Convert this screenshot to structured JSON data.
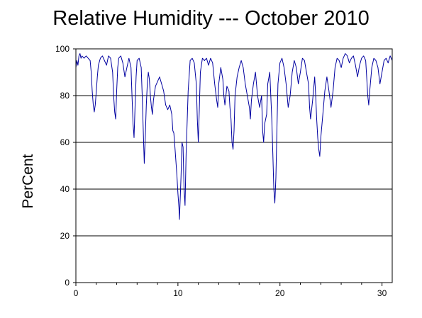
{
  "chart_data": {
    "type": "line",
    "title": "Relative Humidity --- October 2010",
    "xlabel": "",
    "ylabel": "PerCent",
    "xlim": [
      0,
      31
    ],
    "ylim": [
      0,
      100
    ],
    "x_ticks": [
      0,
      10,
      20,
      30
    ],
    "y_ticks": [
      0,
      20,
      40,
      60,
      80,
      100
    ],
    "grid": "horizontal",
    "colors": {
      "series": "#0000a0",
      "axis": "#000000",
      "grid": "#000000"
    },
    "series": [
      {
        "values": [
          [
            0.0,
            92
          ],
          [
            0.1,
            95
          ],
          [
            0.2,
            93
          ],
          [
            0.3,
            97
          ],
          [
            0.4,
            98
          ],
          [
            0.5,
            96
          ],
          [
            0.6,
            97
          ],
          [
            0.8,
            96
          ],
          [
            1.0,
            97
          ],
          [
            1.2,
            96
          ],
          [
            1.4,
            95
          ],
          [
            1.5,
            90
          ],
          [
            1.6,
            82
          ],
          [
            1.7,
            76
          ],
          [
            1.8,
            73
          ],
          [
            1.9,
            76
          ],
          [
            2.0,
            82
          ],
          [
            2.1,
            88
          ],
          [
            2.2,
            93
          ],
          [
            2.4,
            96
          ],
          [
            2.6,
            97
          ],
          [
            2.8,
            95
          ],
          [
            3.0,
            93
          ],
          [
            3.1,
            95
          ],
          [
            3.2,
            97
          ],
          [
            3.4,
            96
          ],
          [
            3.6,
            90
          ],
          [
            3.7,
            80
          ],
          [
            3.8,
            73
          ],
          [
            3.9,
            70
          ],
          [
            4.0,
            82
          ],
          [
            4.1,
            92
          ],
          [
            4.2,
            96
          ],
          [
            4.4,
            97
          ],
          [
            4.6,
            94
          ],
          [
            4.8,
            88
          ],
          [
            5.0,
            92
          ],
          [
            5.2,
            96
          ],
          [
            5.4,
            92
          ],
          [
            5.5,
            80
          ],
          [
            5.6,
            68
          ],
          [
            5.7,
            62
          ],
          [
            5.8,
            75
          ],
          [
            5.9,
            88
          ],
          [
            6.0,
            95
          ],
          [
            6.2,
            96
          ],
          [
            6.4,
            92
          ],
          [
            6.5,
            80
          ],
          [
            6.6,
            65
          ],
          [
            6.7,
            51
          ],
          [
            6.8,
            62
          ],
          [
            6.9,
            76
          ],
          [
            7.0,
            85
          ],
          [
            7.1,
            90
          ],
          [
            7.2,
            87
          ],
          [
            7.3,
            80
          ],
          [
            7.4,
            75
          ],
          [
            7.5,
            72
          ],
          [
            7.6,
            78
          ],
          [
            7.8,
            84
          ],
          [
            8.0,
            86
          ],
          [
            8.2,
            88
          ],
          [
            8.4,
            85
          ],
          [
            8.6,
            82
          ],
          [
            8.8,
            76
          ],
          [
            9.0,
            74
          ],
          [
            9.2,
            76
          ],
          [
            9.4,
            72
          ],
          [
            9.5,
            65
          ],
          [
            9.6,
            64
          ],
          [
            9.7,
            58
          ],
          [
            9.8,
            52
          ],
          [
            9.9,
            46
          ],
          [
            10.0,
            38
          ],
          [
            10.1,
            32
          ],
          [
            10.15,
            27
          ],
          [
            10.3,
            45
          ],
          [
            10.4,
            60
          ],
          [
            10.5,
            58
          ],
          [
            10.6,
            40
          ],
          [
            10.7,
            33
          ],
          [
            10.8,
            55
          ],
          [
            11.0,
            82
          ],
          [
            11.2,
            95
          ],
          [
            11.4,
            96
          ],
          [
            11.6,
            94
          ],
          [
            11.8,
            85
          ],
          [
            11.9,
            70
          ],
          [
            12.0,
            60
          ],
          [
            12.1,
            75
          ],
          [
            12.2,
            90
          ],
          [
            12.4,
            96
          ],
          [
            12.6,
            95
          ],
          [
            12.8,
            96
          ],
          [
            13.0,
            93
          ],
          [
            13.2,
            96
          ],
          [
            13.4,
            94
          ],
          [
            13.6,
            85
          ],
          [
            13.8,
            78
          ],
          [
            13.9,
            75
          ],
          [
            14.0,
            85
          ],
          [
            14.2,
            92
          ],
          [
            14.4,
            87
          ],
          [
            14.5,
            80
          ],
          [
            14.6,
            76
          ],
          [
            14.8,
            84
          ],
          [
            15.0,
            82
          ],
          [
            15.1,
            75
          ],
          [
            15.2,
            70
          ],
          [
            15.3,
            60
          ],
          [
            15.4,
            57
          ],
          [
            15.5,
            65
          ],
          [
            15.6,
            80
          ],
          [
            15.8,
            88
          ],
          [
            16.0,
            92
          ],
          [
            16.2,
            95
          ],
          [
            16.4,
            92
          ],
          [
            16.6,
            85
          ],
          [
            16.8,
            80
          ],
          [
            17.0,
            75
          ],
          [
            17.1,
            70
          ],
          [
            17.2,
            78
          ],
          [
            17.4,
            85
          ],
          [
            17.6,
            90
          ],
          [
            17.8,
            80
          ],
          [
            18.0,
            75
          ],
          [
            18.2,
            80
          ],
          [
            18.3,
            65
          ],
          [
            18.4,
            60
          ],
          [
            18.5,
            68
          ],
          [
            18.6,
            70
          ],
          [
            18.7,
            72
          ],
          [
            18.8,
            85
          ],
          [
            19.0,
            90
          ],
          [
            19.1,
            80
          ],
          [
            19.2,
            70
          ],
          [
            19.3,
            55
          ],
          [
            19.4,
            40
          ],
          [
            19.5,
            34
          ],
          [
            19.6,
            45
          ],
          [
            19.7,
            65
          ],
          [
            19.8,
            85
          ],
          [
            20.0,
            94
          ],
          [
            20.2,
            96
          ],
          [
            20.4,
            92
          ],
          [
            20.6,
            85
          ],
          [
            20.8,
            75
          ],
          [
            21.0,
            80
          ],
          [
            21.2,
            90
          ],
          [
            21.4,
            95
          ],
          [
            21.6,
            92
          ],
          [
            21.8,
            85
          ],
          [
            22.0,
            90
          ],
          [
            22.2,
            96
          ],
          [
            22.4,
            95
          ],
          [
            22.6,
            90
          ],
          [
            22.8,
            85
          ],
          [
            22.9,
            75
          ],
          [
            23.0,
            70
          ],
          [
            23.2,
            78
          ],
          [
            23.4,
            88
          ],
          [
            23.5,
            80
          ],
          [
            23.6,
            70
          ],
          [
            23.7,
            62
          ],
          [
            23.8,
            57
          ],
          [
            23.9,
            54
          ],
          [
            24.0,
            62
          ],
          [
            24.2,
            72
          ],
          [
            24.4,
            82
          ],
          [
            24.6,
            88
          ],
          [
            24.8,
            82
          ],
          [
            25.0,
            75
          ],
          [
            25.2,
            82
          ],
          [
            25.4,
            92
          ],
          [
            25.6,
            96
          ],
          [
            25.8,
            95
          ],
          [
            26.0,
            92
          ],
          [
            26.2,
            96
          ],
          [
            26.4,
            98
          ],
          [
            26.6,
            97
          ],
          [
            26.8,
            94
          ],
          [
            27.0,
            96
          ],
          [
            27.2,
            97
          ],
          [
            27.4,
            93
          ],
          [
            27.6,
            88
          ],
          [
            27.8,
            93
          ],
          [
            28.0,
            96
          ],
          [
            28.2,
            97
          ],
          [
            28.4,
            95
          ],
          [
            28.5,
            88
          ],
          [
            28.6,
            80
          ],
          [
            28.7,
            76
          ],
          [
            28.8,
            82
          ],
          [
            29.0,
            92
          ],
          [
            29.2,
            96
          ],
          [
            29.4,
            95
          ],
          [
            29.6,
            92
          ],
          [
            29.8,
            85
          ],
          [
            30.0,
            90
          ],
          [
            30.2,
            95
          ],
          [
            30.4,
            96
          ],
          [
            30.6,
            94
          ],
          [
            30.8,
            97
          ],
          [
            31.0,
            95
          ]
        ]
      }
    ]
  }
}
